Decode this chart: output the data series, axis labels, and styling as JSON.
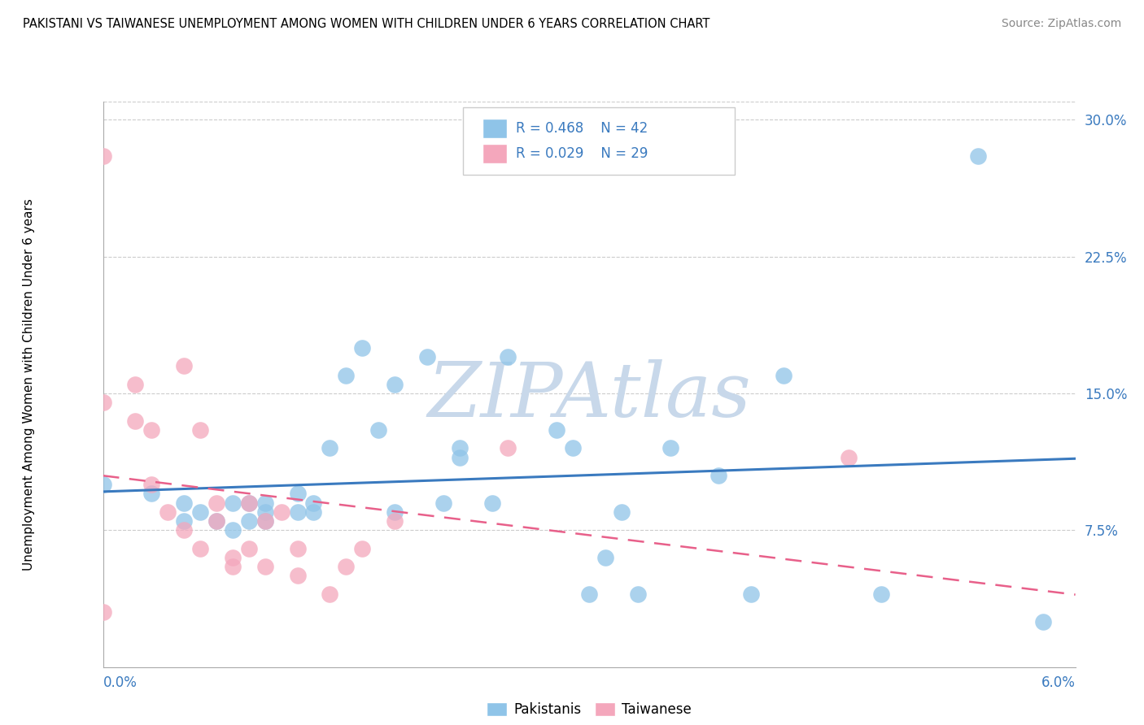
{
  "title": "PAKISTANI VS TAIWANESE UNEMPLOYMENT AMONG WOMEN WITH CHILDREN UNDER 6 YEARS CORRELATION CHART",
  "source": "Source: ZipAtlas.com",
  "ylabel": "Unemployment Among Women with Children Under 6 years",
  "yticks": [
    0.0,
    0.075,
    0.15,
    0.225,
    0.3
  ],
  "ytick_labels": [
    "",
    "7.5%",
    "15.0%",
    "22.5%",
    "30.0%"
  ],
  "xlim": [
    0.0,
    0.06
  ],
  "ylim": [
    0.0,
    0.31
  ],
  "legend_r1": "R = 0.468",
  "legend_n1": "N = 42",
  "legend_r2": "R = 0.029",
  "legend_n2": "N = 29",
  "blue_scatter": "#8fc4e8",
  "pink_scatter": "#f4a7bc",
  "blue_line_color": "#3a7abf",
  "pink_line_color": "#e8608a",
  "watermark": "ZIPAtlas",
  "watermark_color": "#c8d8ea",
  "pakistanis_x": [
    0.0,
    0.003,
    0.005,
    0.005,
    0.006,
    0.007,
    0.008,
    0.008,
    0.009,
    0.009,
    0.01,
    0.01,
    0.01,
    0.012,
    0.012,
    0.013,
    0.013,
    0.014,
    0.015,
    0.016,
    0.017,
    0.018,
    0.018,
    0.02,
    0.021,
    0.022,
    0.022,
    0.024,
    0.025,
    0.028,
    0.029,
    0.03,
    0.031,
    0.032,
    0.033,
    0.035,
    0.038,
    0.04,
    0.042,
    0.048,
    0.054,
    0.058
  ],
  "pakistanis_y": [
    0.1,
    0.095,
    0.09,
    0.08,
    0.085,
    0.08,
    0.09,
    0.075,
    0.09,
    0.08,
    0.09,
    0.085,
    0.08,
    0.085,
    0.095,
    0.085,
    0.09,
    0.12,
    0.16,
    0.175,
    0.13,
    0.085,
    0.155,
    0.17,
    0.09,
    0.12,
    0.115,
    0.09,
    0.17,
    0.13,
    0.12,
    0.04,
    0.06,
    0.085,
    0.04,
    0.12,
    0.105,
    0.04,
    0.16,
    0.04,
    0.28,
    0.025
  ],
  "taiwanese_x": [
    0.0,
    0.0,
    0.0,
    0.002,
    0.002,
    0.003,
    0.003,
    0.004,
    0.005,
    0.005,
    0.006,
    0.006,
    0.007,
    0.007,
    0.008,
    0.008,
    0.009,
    0.009,
    0.01,
    0.01,
    0.011,
    0.012,
    0.012,
    0.014,
    0.015,
    0.016,
    0.018,
    0.025,
    0.046
  ],
  "taiwanese_y": [
    0.28,
    0.145,
    0.03,
    0.155,
    0.135,
    0.1,
    0.13,
    0.085,
    0.165,
    0.075,
    0.13,
    0.065,
    0.09,
    0.08,
    0.06,
    0.055,
    0.09,
    0.065,
    0.08,
    0.055,
    0.085,
    0.065,
    0.05,
    0.04,
    0.055,
    0.065,
    0.08,
    0.12,
    0.115
  ]
}
